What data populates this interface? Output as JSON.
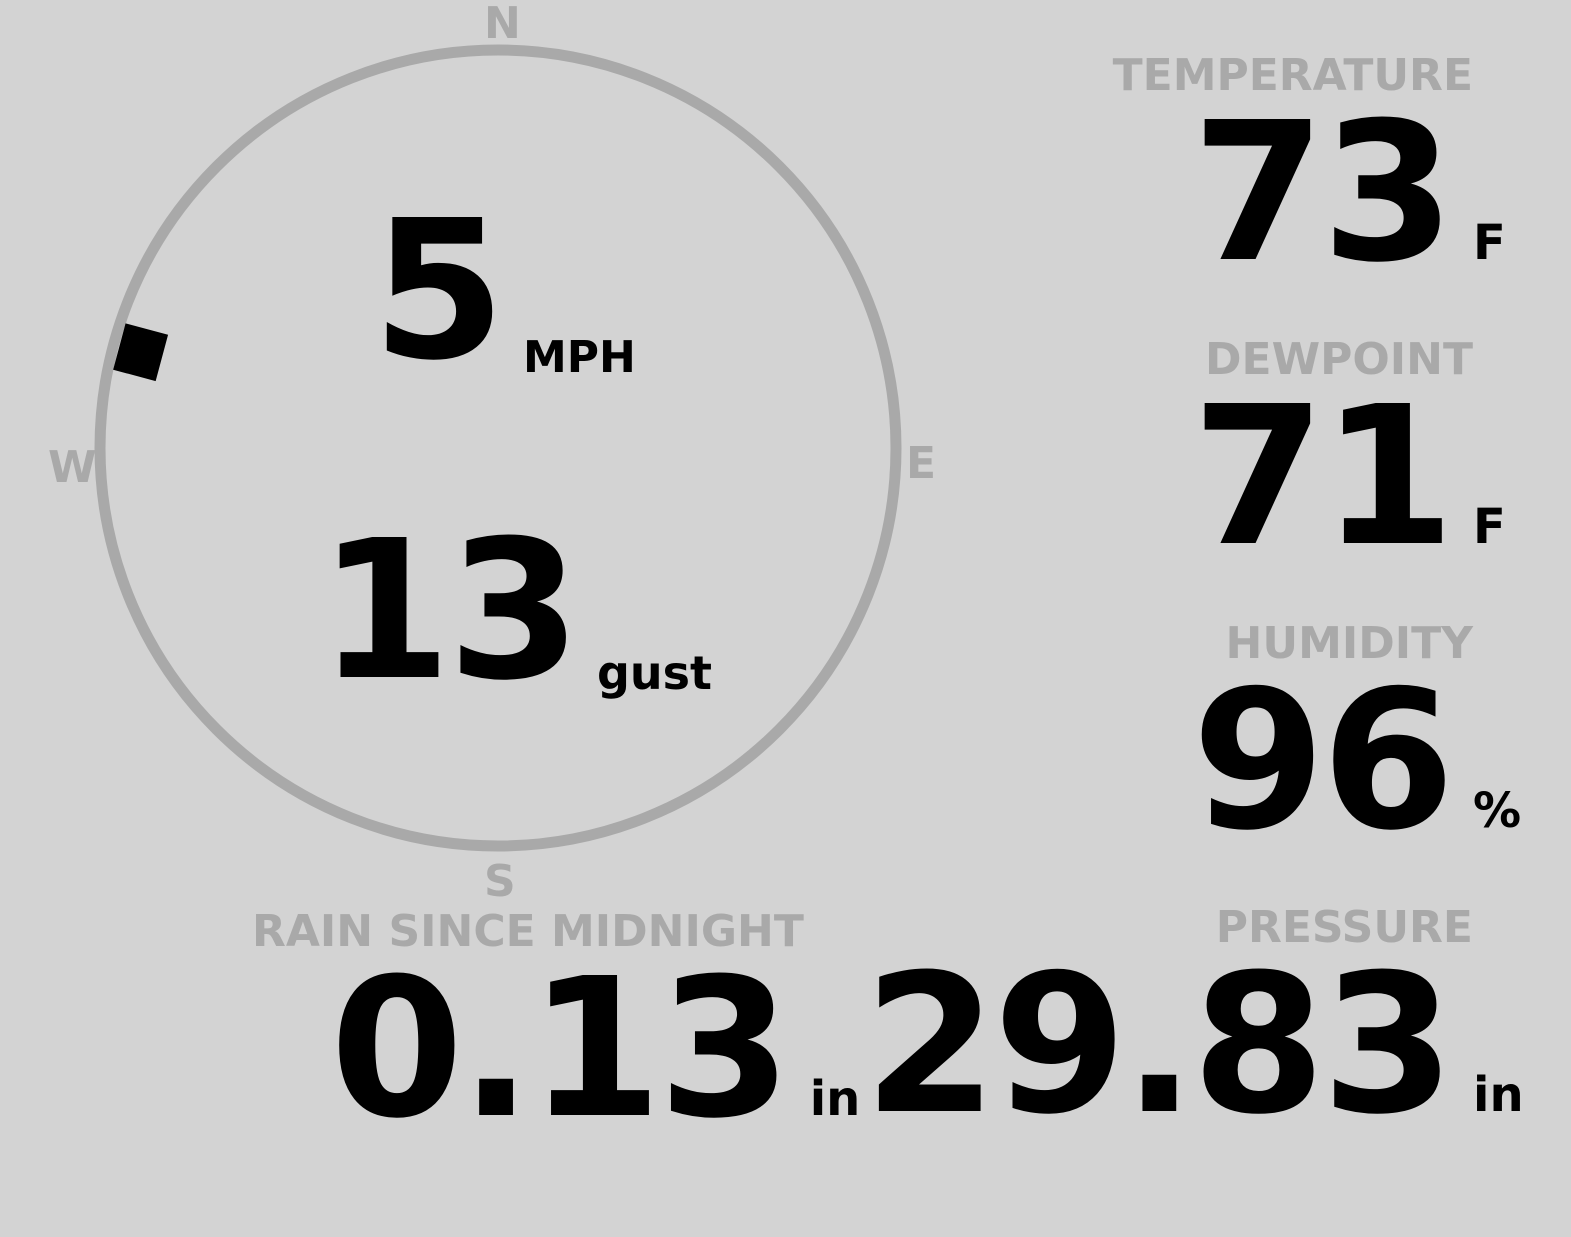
{
  "compass": {
    "north": "N",
    "south": "S",
    "east": "E",
    "west": "W",
    "wind_direction_deg": 285,
    "ring_color": "#a9a9a9",
    "marker_color": "#000000"
  },
  "wind": {
    "speed": "5",
    "speed_unit": "MPH",
    "gust": "13",
    "gust_unit": "gust"
  },
  "temperature": {
    "label": "TEMPERATURE",
    "value": "73",
    "unit": "F"
  },
  "dewpoint": {
    "label": "DEWPOINT",
    "value": "71",
    "unit": "F"
  },
  "humidity": {
    "label": "HUMIDITY",
    "value": "96",
    "unit": "%"
  },
  "rain": {
    "label": "RAIN SINCE MIDNIGHT",
    "value": "0.13",
    "unit": "in"
  },
  "pressure": {
    "label": "PRESSURE",
    "value": "29.83",
    "unit": "in"
  },
  "colors": {
    "background": "#d3d3d3",
    "label": "#a9a9a9",
    "value": "#000000"
  }
}
